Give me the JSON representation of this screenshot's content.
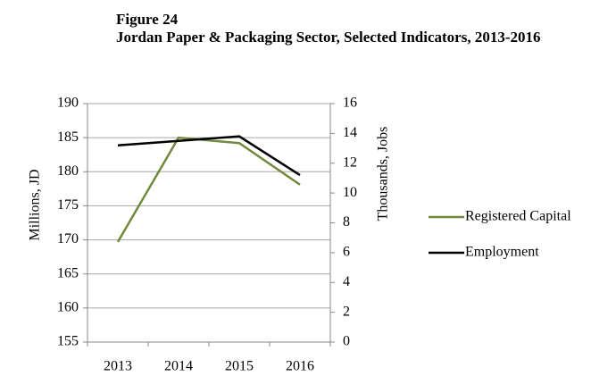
{
  "chart_data": {
    "type": "line",
    "title": "Figure 24",
    "subtitle": "Jordan Paper & Packaging Sector, Selected Indicators, 2013-2016",
    "categories": [
      "2013",
      "2014",
      "2015",
      "2016"
    ],
    "series": [
      {
        "name": "Registered Capital",
        "color": "#6f8a3c",
        "values": [
          169.7,
          185,
          184.2,
          178.1
        ]
      },
      {
        "name": "Employment",
        "color": "#000000",
        "values": [
          13.2,
          13.5,
          13.8,
          11.2
        ],
        "axis": "y2"
      }
    ],
    "ylabel": "Millions, JD",
    "y2label": "Thousands, Jobs",
    "ylim": [
      155,
      190
    ],
    "yticks": [
      155,
      160,
      165,
      170,
      175,
      180,
      185,
      190
    ],
    "y2lim": [
      0,
      16
    ],
    "y2ticks": [
      0,
      2,
      4,
      6,
      8,
      10,
      12,
      14,
      16
    ],
    "grid": true,
    "legend": "right"
  }
}
